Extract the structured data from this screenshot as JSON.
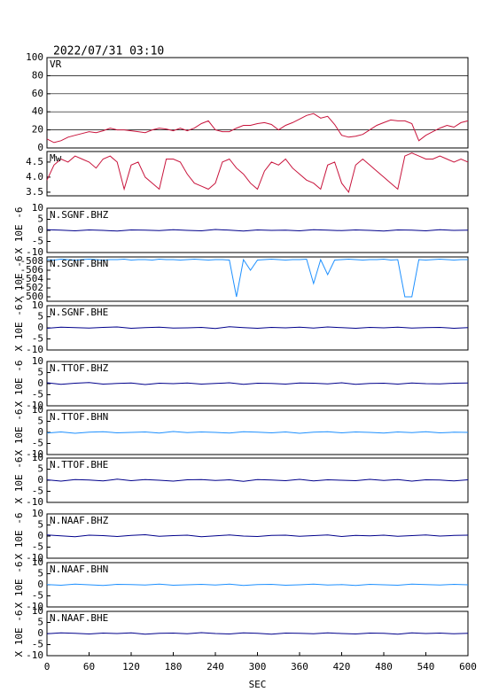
{
  "chart_data": [
    {
      "type": "line",
      "title": "2022/07/31 03:10",
      "label": "VR",
      "color": "#c8143c",
      "grid": true,
      "ylim": [
        0,
        100
      ],
      "yticks": [
        0,
        20,
        40,
        60,
        80,
        100
      ],
      "x": [
        0,
        10,
        20,
        30,
        40,
        50,
        60,
        70,
        80,
        90,
        100,
        110,
        120,
        130,
        140,
        150,
        160,
        170,
        180,
        190,
        200,
        210,
        220,
        230,
        240,
        250,
        260,
        270,
        280,
        290,
        300,
        310,
        320,
        330,
        340,
        350,
        360,
        370,
        380,
        390,
        400,
        410,
        420,
        430,
        440,
        450,
        460,
        470,
        480,
        490,
        500,
        510,
        520,
        530,
        540,
        550,
        560,
        570,
        580,
        590,
        600
      ],
      "values": [
        10,
        6,
        8,
        12,
        14,
        16,
        18,
        17,
        19,
        22,
        20,
        20,
        19,
        18,
        17,
        20,
        22,
        21,
        19,
        22,
        19,
        22,
        27,
        30,
        20,
        18,
        18,
        22,
        25,
        25,
        27,
        28,
        26,
        20,
        25,
        28,
        32,
        36,
        38,
        33,
        35,
        26,
        14,
        12,
        13,
        15,
        20,
        25,
        28,
        31,
        30,
        30,
        27,
        8,
        14,
        18,
        22,
        25,
        23,
        28,
        30
      ]
    },
    {
      "type": "line",
      "label": "Mw",
      "color": "#c8143c",
      "ylim": [
        3.38,
        4.85
      ],
      "yticks": [
        3.5,
        {
          "value": 4,
          "label": "4.0"
        },
        4.5
      ],
      "x": [
        0,
        10,
        20,
        30,
        40,
        50,
        60,
        70,
        80,
        90,
        100,
        110,
        120,
        130,
        140,
        150,
        160,
        170,
        180,
        190,
        200,
        210,
        220,
        230,
        240,
        250,
        260,
        270,
        280,
        290,
        300,
        310,
        320,
        330,
        340,
        350,
        360,
        370,
        380,
        390,
        400,
        410,
        420,
        430,
        440,
        450,
        460,
        470,
        480,
        490,
        500,
        510,
        520,
        530,
        540,
        550,
        560,
        570,
        580,
        590,
        600
      ],
      "values": [
        3.9,
        4.4,
        4.6,
        4.5,
        4.7,
        4.6,
        4.5,
        4.3,
        4.6,
        4.7,
        4.5,
        3.6,
        4.4,
        4.5,
        4.0,
        3.8,
        3.6,
        4.6,
        4.6,
        4.5,
        4.1,
        3.8,
        3.7,
        3.6,
        3.8,
        4.5,
        4.6,
        4.3,
        4.1,
        3.8,
        3.6,
        4.2,
        4.5,
        4.4,
        4.6,
        4.3,
        4.1,
        3.9,
        3.8,
        3.6,
        4.4,
        4.5,
        3.8,
        3.5,
        4.4,
        4.6,
        4.4,
        4.2,
        4.0,
        3.8,
        3.6,
        4.7,
        4.8,
        4.7,
        4.6,
        4.6,
        4.7,
        4.6,
        4.5,
        4.6,
        4.5
      ]
    },
    {
      "type": "line",
      "label": "N.SGNF.BHZ",
      "ylabel": "X 10E -6",
      "color": "#00008b",
      "ylim": [
        -10,
        10
      ],
      "yticks": [
        -10,
        -5,
        0,
        5,
        10
      ],
      "x": [
        0,
        20,
        40,
        60,
        80,
        100,
        120,
        140,
        160,
        180,
        200,
        220,
        240,
        260,
        280,
        300,
        320,
        340,
        360,
        380,
        400,
        420,
        440,
        460,
        480,
        500,
        520,
        540,
        560,
        580,
        600
      ],
      "values": [
        0.3,
        0.1,
        -0.2,
        0.2,
        0,
        -0.3,
        0.2,
        0.1,
        -0.1,
        0.3,
        0,
        -0.2,
        0.4,
        0.1,
        -0.3,
        0.2,
        0,
        0.1,
        -0.2,
        0.3,
        0.1,
        -0.1,
        0.2,
        0,
        -0.3,
        0.2,
        0.1,
        -0.2,
        0.3,
        0,
        0.1
      ]
    },
    {
      "type": "line",
      "label": "N.SGNF.BHN",
      "ylabel": "X 10E -6",
      "color": "#1e90ff",
      "ylim": [
        -499,
        -509
      ],
      "yticks": [
        -508,
        -506,
        -504,
        -502,
        -500
      ],
      "x": [
        0,
        10,
        20,
        30,
        40,
        50,
        60,
        70,
        80,
        90,
        100,
        110,
        120,
        130,
        140,
        150,
        160,
        170,
        180,
        190,
        200,
        210,
        220,
        230,
        240,
        250,
        260,
        270,
        280,
        290,
        300,
        310,
        320,
        330,
        340,
        350,
        360,
        370,
        380,
        390,
        400,
        410,
        420,
        430,
        440,
        450,
        460,
        470,
        480,
        490,
        500,
        510,
        520,
        530,
        540,
        550,
        560,
        570,
        580,
        590,
        600
      ],
      "values": [
        -508.4,
        -508.3,
        -508.5,
        -508.4,
        -508.3,
        -508.4,
        -508.5,
        -508.4,
        -508.3,
        -508.4,
        -508.4,
        -508.5,
        -508.3,
        -508.4,
        -508.4,
        -508.3,
        -508.5,
        -508.4,
        -508.4,
        -508.3,
        -508.4,
        -508.5,
        -508.4,
        -508.3,
        -508.4,
        -508.4,
        -508.3,
        -500,
        -508.4,
        -506,
        -508.3,
        -508.4,
        -508.5,
        -508.4,
        -508.3,
        -508.4,
        -508.4,
        -508.5,
        -503,
        -508.4,
        -505,
        -508.3,
        -508.4,
        -508.5,
        -508.4,
        -508.3,
        -508.4,
        -508.4,
        -508.5,
        -508.3,
        -508.4,
        -500,
        -500,
        -508.4,
        -508.3,
        -508.4,
        -508.5,
        -508.4,
        -508.3,
        -508.4,
        -508.4
      ]
    },
    {
      "type": "line",
      "label": "N.SGNF.BHE",
      "ylabel": "X 10E -6",
      "color": "#00008b",
      "ylim": [
        -10,
        10
      ],
      "yticks": [
        -10,
        -5,
        0,
        5,
        10
      ],
      "x": [
        0,
        20,
        40,
        60,
        80,
        100,
        120,
        140,
        160,
        180,
        200,
        220,
        240,
        260,
        280,
        300,
        320,
        340,
        360,
        380,
        400,
        420,
        440,
        460,
        480,
        500,
        520,
        540,
        560,
        580,
        600
      ],
      "values": [
        -0.2,
        0.3,
        0.1,
        -0.1,
        0.2,
        0.4,
        -0.2,
        0.1,
        0.3,
        -0.1,
        0,
        0.2,
        -0.3,
        0.5,
        0.1,
        -0.2,
        0.2,
        0,
        0.3,
        -0.1,
        0.4,
        0.1,
        -0.2,
        0.2,
        0,
        0.3,
        -0.1,
        0.1,
        0.2,
        -0.2,
        0.1
      ]
    },
    {
      "type": "line",
      "label": "N.TTOF.BHZ",
      "ylabel": "X 10E -6",
      "color": "#00008b",
      "ylim": [
        -10,
        10
      ],
      "yticks": [
        -10,
        -5,
        0,
        5,
        10
      ],
      "x": [
        0,
        20,
        40,
        60,
        80,
        100,
        120,
        140,
        160,
        180,
        200,
        220,
        240,
        260,
        280,
        300,
        320,
        340,
        360,
        380,
        400,
        420,
        440,
        460,
        480,
        500,
        520,
        540,
        560,
        580,
        600
      ],
      "values": [
        0.4,
        -0.3,
        0.2,
        0.5,
        -0.2,
        0.1,
        0.3,
        -0.4,
        0.2,
        0,
        0.3,
        -0.2,
        0.1,
        0.4,
        -0.3,
        0.2,
        0.1,
        -0.2,
        0.3,
        0.2,
        -0.1,
        0.4,
        -0.3,
        0.1,
        0.2,
        -0.2,
        0.3,
        0,
        -0.1,
        0.2,
        0.3
      ]
    },
    {
      "type": "line",
      "label": "N.TTOF.BHN",
      "ylabel": "X 10E -6",
      "color": "#1e90ff",
      "ylim": [
        -10,
        10
      ],
      "yticks": [
        -10,
        -5,
        0,
        5,
        10
      ],
      "x": [
        0,
        20,
        40,
        60,
        80,
        100,
        120,
        140,
        160,
        180,
        200,
        220,
        240,
        260,
        280,
        300,
        320,
        340,
        360,
        380,
        400,
        420,
        440,
        460,
        480,
        500,
        520,
        540,
        560,
        580,
        600
      ],
      "values": [
        -0.3,
        0.2,
        -0.4,
        0.1,
        0.3,
        -0.2,
        0,
        0.2,
        -0.3,
        0.4,
        -0.1,
        0.2,
        0,
        -0.3,
        0.3,
        0.1,
        -0.2,
        0.2,
        -0.4,
        0.1,
        0.3,
        -0.2,
        0.2,
        0,
        -0.3,
        0.2,
        -0.1,
        0.3,
        -0.2,
        0.1,
        0
      ]
    },
    {
      "type": "line",
      "label": "N.TTOF.BHE",
      "ylabel": "X 10E -6",
      "color": "#00008b",
      "ylim": [
        -10,
        10
      ],
      "yticks": [
        -10,
        -5,
        0,
        5,
        10
      ],
      "x": [
        0,
        20,
        40,
        60,
        80,
        100,
        120,
        140,
        160,
        180,
        200,
        220,
        240,
        260,
        280,
        300,
        320,
        340,
        360,
        380,
        400,
        420,
        440,
        460,
        480,
        500,
        520,
        540,
        560,
        580,
        600
      ],
      "values": [
        0.2,
        -0.4,
        0.3,
        0.1,
        -0.3,
        0.5,
        -0.2,
        0.3,
        0,
        -0.4,
        0.2,
        0.3,
        -0.1,
        0.2,
        -0.5,
        0.3,
        0.1,
        -0.2,
        0.4,
        -0.3,
        0.2,
        0,
        -0.2,
        0.4,
        -0.1,
        0.3,
        -0.4,
        0.2,
        0.1,
        -0.3,
        0.2
      ]
    },
    {
      "type": "line",
      "label": "N.NAAF.BHZ",
      "ylabel": "X 10E -6",
      "color": "#00008b",
      "ylim": [
        -10,
        10
      ],
      "yticks": [
        -10,
        -5,
        0,
        5,
        10
      ],
      "x": [
        0,
        20,
        40,
        60,
        80,
        100,
        120,
        140,
        160,
        180,
        200,
        220,
        240,
        260,
        280,
        300,
        320,
        340,
        360,
        380,
        400,
        420,
        440,
        460,
        480,
        500,
        520,
        540,
        560,
        580,
        600
      ],
      "values": [
        0.5,
        0.1,
        -0.3,
        0.4,
        0.2,
        -0.2,
        0.3,
        0.6,
        -0.1,
        0.2,
        0.4,
        -0.3,
        0.1,
        0.5,
        0,
        -0.2,
        0.3,
        0.4,
        -0.1,
        0.2,
        0.5,
        -0.2,
        0.3,
        0.1,
        0.4,
        -0.1,
        0.2,
        0.5,
        0,
        0.3,
        0.4
      ]
    },
    {
      "type": "line",
      "label": "N.NAAF.BHN",
      "ylabel": "X 10E -6",
      "color": "#1e90ff",
      "ylim": [
        -10,
        10
      ],
      "yticks": [
        -10,
        -5,
        0,
        5,
        10
      ],
      "x": [
        0,
        20,
        40,
        60,
        80,
        100,
        120,
        140,
        160,
        180,
        200,
        220,
        240,
        260,
        280,
        300,
        320,
        340,
        360,
        380,
        400,
        420,
        440,
        460,
        480,
        500,
        520,
        540,
        560,
        580,
        600
      ],
      "values": [
        0.1,
        -0.2,
        0.3,
        0,
        -0.3,
        0.2,
        0.1,
        -0.1,
        0.3,
        -0.2,
        0,
        0.2,
        -0.1,
        0.3,
        -0.3,
        0.1,
        0.2,
        -0.2,
        0,
        0.3,
        -0.1,
        0.1,
        -0.3,
        0.2,
        0,
        -0.2,
        0.3,
        0.1,
        -0.1,
        0.2,
        0
      ]
    },
    {
      "type": "line",
      "label": "N.NAAF.BHE",
      "ylabel": "X 10E -6",
      "color": "#00008b",
      "ylim": [
        -10,
        10
      ],
      "yticks": [
        -10,
        -5,
        0,
        5,
        10
      ],
      "xlim": [
        0,
        600
      ],
      "xticks": [
        0,
        60,
        120,
        180,
        240,
        300,
        360,
        420,
        480,
        540,
        600
      ],
      "xlabel": "SEC",
      "x": [
        0,
        20,
        40,
        60,
        80,
        100,
        120,
        140,
        160,
        180,
        200,
        220,
        240,
        260,
        280,
        300,
        320,
        340,
        360,
        380,
        400,
        420,
        440,
        460,
        480,
        500,
        520,
        540,
        560,
        580,
        600
      ],
      "values": [
        -0.1,
        0.3,
        0.1,
        -0.2,
        0.2,
        0,
        0.3,
        -0.3,
        0.1,
        0.2,
        -0.1,
        0.4,
        0,
        -0.2,
        0.3,
        0.1,
        -0.3,
        0.2,
        0.1,
        -0.1,
        0.3,
        0,
        -0.2,
        0.2,
        0.1,
        -0.3,
        0.3,
        0,
        0.2,
        -0.1,
        0.1
      ]
    }
  ]
}
